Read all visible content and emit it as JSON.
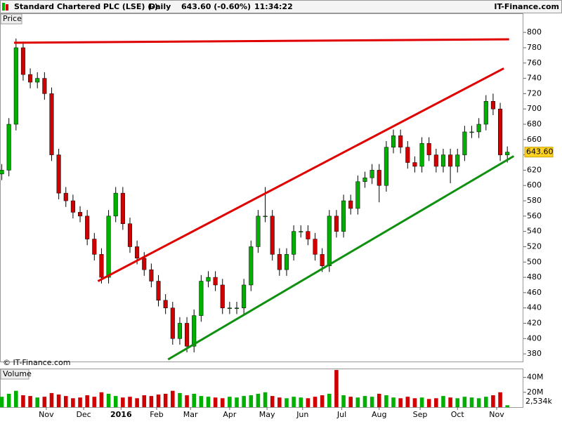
{
  "chart_data": {
    "type": "candlestick",
    "title": "Standard Chartered PLC (LSE) (-)",
    "period": "Daily",
    "price_change": "643.60 (-0.60%)",
    "time": "11:34:22",
    "brand": "IT-Finance.com",
    "copyright": "© IT-Finance.com",
    "price_panel_label": "Price",
    "volume_panel_label": "Volume",
    "up_color": "#00b000",
    "down_color": "#d00000",
    "x": [
      0,
      4,
      8,
      12,
      16,
      20,
      24,
      28,
      32,
      36,
      40,
      44,
      48,
      52,
      56,
      60,
      64,
      68,
      72,
      76,
      80,
      84,
      88,
      92,
      96,
      100,
      104,
      108,
      112,
      116,
      120,
      124,
      128,
      132,
      136,
      140,
      144,
      148,
      152,
      156,
      160,
      164,
      168,
      172,
      176,
      180,
      184,
      188,
      192,
      196,
      200,
      204,
      208,
      212,
      216,
      220,
      224,
      228,
      232,
      236,
      240,
      244,
      248,
      252,
      256,
      260,
      264,
      268,
      272,
      276,
      280,
      284
    ],
    "open": [
      615,
      620,
      680,
      780,
      745,
      735,
      740,
      720,
      640,
      590,
      580,
      565,
      560,
      530,
      510,
      480,
      560,
      590,
      550,
      520,
      505,
      490,
      475,
      450,
      440,
      400,
      420,
      390,
      430,
      475,
      480,
      470,
      440,
      440,
      440,
      470,
      520,
      560,
      560,
      510,
      490,
      510,
      540,
      540,
      530,
      510,
      495,
      560,
      540,
      580,
      570,
      605,
      610,
      620,
      600,
      650,
      665,
      650,
      630,
      625,
      655,
      640,
      625,
      640,
      625,
      640,
      670,
      670,
      680,
      710,
      700,
      640
    ],
    "high": [
      628,
      688,
      792,
      788,
      753,
      748,
      748,
      728,
      648,
      598,
      588,
      573,
      568,
      538,
      518,
      568,
      598,
      598,
      558,
      528,
      513,
      498,
      483,
      458,
      448,
      428,
      428,
      438,
      483,
      488,
      488,
      478,
      448,
      448,
      478,
      528,
      568,
      598,
      568,
      518,
      518,
      548,
      548,
      548,
      538,
      518,
      568,
      568,
      588,
      588,
      613,
      618,
      628,
      628,
      658,
      673,
      673,
      658,
      638,
      663,
      663,
      648,
      648,
      648,
      648,
      678,
      678,
      688,
      718,
      720,
      708,
      651
    ],
    "low": [
      607,
      612,
      672,
      737,
      727,
      727,
      712,
      632,
      582,
      572,
      557,
      552,
      522,
      502,
      472,
      472,
      552,
      542,
      512,
      497,
      482,
      467,
      442,
      432,
      392,
      392,
      382,
      382,
      422,
      467,
      462,
      432,
      432,
      432,
      432,
      462,
      512,
      552,
      502,
      482,
      482,
      502,
      532,
      522,
      502,
      487,
      487,
      532,
      532,
      562,
      562,
      597,
      602,
      578,
      592,
      642,
      642,
      622,
      617,
      617,
      632,
      617,
      617,
      603,
      617,
      632,
      662,
      662,
      672,
      692,
      632,
      630
    ],
    "close": [
      620,
      680,
      780,
      745,
      735,
      740,
      720,
      640,
      590,
      580,
      565,
      560,
      530,
      510,
      480,
      560,
      590,
      550,
      520,
      505,
      490,
      475,
      450,
      440,
      400,
      420,
      390,
      430,
      475,
      480,
      470,
      440,
      440,
      440,
      470,
      520,
      560,
      560,
      510,
      490,
      510,
      540,
      540,
      530,
      510,
      495,
      560,
      540,
      580,
      570,
      605,
      610,
      620,
      600,
      650,
      665,
      650,
      630,
      625,
      655,
      640,
      625,
      640,
      625,
      640,
      670,
      670,
      680,
      710,
      700,
      640,
      643.6
    ],
    "last_value_label": "643.60",
    "volume": [
      14,
      18,
      22,
      16,
      15,
      13,
      14,
      19,
      17,
      15,
      12,
      13,
      16,
      14,
      20,
      18,
      15,
      13,
      14,
      12,
      16,
      15,
      17,
      18,
      22,
      19,
      16,
      18,
      15,
      14,
      13,
      12,
      14,
      13,
      15,
      16,
      18,
      20,
      15,
      13,
      12,
      14,
      13,
      12,
      14,
      16,
      18,
      50,
      16,
      14,
      13,
      15,
      14,
      18,
      16,
      13,
      12,
      14,
      12,
      13,
      11,
      12,
      15,
      13,
      12,
      14,
      13,
      12,
      14,
      16,
      20,
      2.534
    ],
    "volume_last_label": "2,534k",
    "xlim": [
      -1,
      293
    ],
    "xticks": [
      {
        "value": 25,
        "label": "Nov"
      },
      {
        "value": 46,
        "label": "Dec"
      },
      {
        "value": 67,
        "label": "2016"
      },
      {
        "value": 87,
        "label": "Feb"
      },
      {
        "value": 106,
        "label": "Mar"
      },
      {
        "value": 128,
        "label": "Apr"
      },
      {
        "value": 149,
        "label": "May"
      },
      {
        "value": 169,
        "label": "Jun"
      },
      {
        "value": 191,
        "label": "Jul"
      },
      {
        "value": 212,
        "label": "Aug"
      },
      {
        "value": 235,
        "label": "Sep"
      },
      {
        "value": 256,
        "label": "Oct"
      },
      {
        "value": 278,
        "label": "Nov"
      }
    ],
    "ylim": [
      370,
      824
    ],
    "yticks": [
      380,
      400,
      420,
      440,
      460,
      480,
      500,
      520,
      540,
      560,
      580,
      600,
      620,
      640,
      660,
      680,
      700,
      720,
      740,
      760,
      780,
      800
    ],
    "volume_ylim": [
      0,
      51
    ],
    "volume_yticks": [
      {
        "value": 20,
        "label": "20M"
      },
      {
        "value": 40,
        "label": "40M"
      }
    ],
    "trendlines": [
      {
        "color": "#e00000",
        "x": [
          6.9,
          285
        ],
        "y": [
          786.5,
          791
        ]
      },
      {
        "color": "#e00000",
        "x": [
          54,
          282
        ],
        "y": [
          475,
          753
        ]
      },
      {
        "color": "#109010",
        "x": [
          93.4,
          287.6
        ],
        "y": [
          372.7,
          638.4
        ]
      }
    ]
  }
}
